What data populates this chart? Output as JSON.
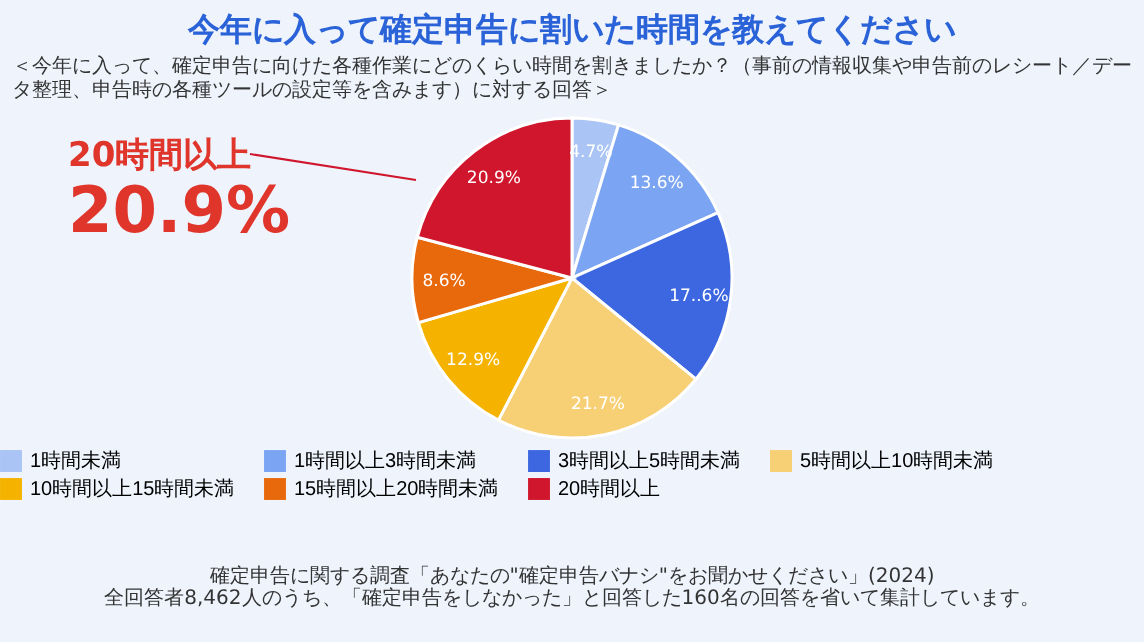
{
  "chart_data": {
    "type": "pie",
    "title": "今年に入って確定申告に割いた時間を教えてください",
    "subtitle": "＜今年に入って、確定申告に向けた各種作業にどのくらい時間を割きましたか？（事前の情報収集や申告前のレシート／データ整理、申告時の各種ツールの設定等を含みます）に対する回答＞",
    "categories": [
      "1時間未満",
      "1時間以上3時間未満",
      "3時間以上5時間未満",
      "5時間以上10時間未満",
      "10時間以上15時間未満",
      "15時間以上20時間未満",
      "20時間以上"
    ],
    "values": [
      4.7,
      13.6,
      17.6,
      21.7,
      12.9,
      8.6,
      20.9
    ],
    "value_labels": [
      "4.7%",
      "13.6%",
      "17..6%",
      "21.7%",
      "12.9%",
      "8.6%",
      "20.9%"
    ],
    "colors": [
      "#a9c4f5",
      "#7ba4f2",
      "#3c67e0",
      "#f7cf74",
      "#f5b300",
      "#e8690c",
      "#d0162d"
    ],
    "legend": "bottom",
    "annotations": [
      "20時間以上",
      "20.9%",
      "確定申告に関する調査「あなたの\"確定申告バナシ\"をお聞かせください」(2024)",
      "全回答者8,462人のうち、「確定申告をしなかった」と回答した160名の回答を省いて集計しています。"
    ]
  }
}
